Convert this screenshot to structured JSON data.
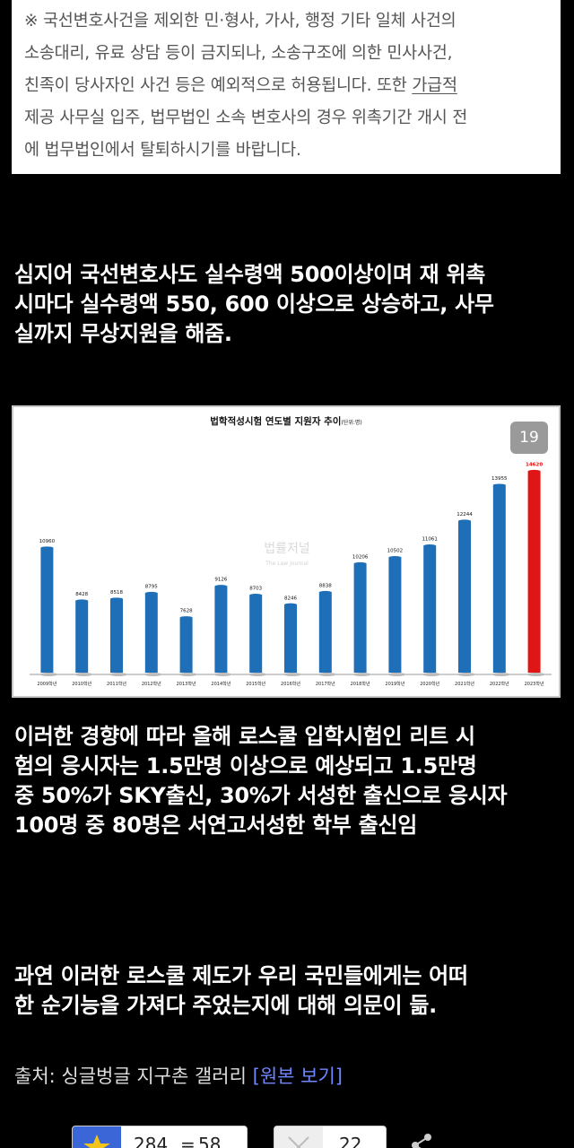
{
  "notice": {
    "lines": [
      "※ 국선변호사건을 제외한 민·형사, 가사, 행정 기타 일체 사건의",
      "소송대리, 유료 상담 등이 금지되나, 소송구조에 의한 민사사건,",
      "친족이 당사자인 사건 등은 예외적으로 허용됩니다. 또한 ",
      "가급적",
      "제공 사무실 입주, 법무법인 소속 변호사의 경우 위촉기간 개시 전",
      "에 법무법인에서 탈퇴하시기를 바랍니다."
    ]
  },
  "paragraph1": [
    "심지어 국선변호사도 실수령액 500이상이며 재 위촉",
    "시마다 실수령액 550, 600 이상으로 상승하고, 사무",
    "실까지 무상지원을 해줌."
  ],
  "page_badge": "19",
  "chart_data": {
    "type": "bar",
    "title": "법학적성시험 연도별 지원자 추이",
    "title_unit": "(단위:명)",
    "watermark": "법률저널",
    "watermark_en": "The Law Journal",
    "categories": [
      "2009학년",
      "2010학년",
      "2011학년",
      "2012학년",
      "2013학년",
      "2014학년",
      "2015학년",
      "2016학년",
      "2017학년",
      "2018학년",
      "2019학년",
      "2020학년",
      "2021학년",
      "2022학년",
      "2023학년"
    ],
    "values": [
      10960,
      8428,
      8518,
      8795,
      7628,
      9126,
      8703,
      8246,
      8838,
      10206,
      10502,
      11061,
      12244,
      13955,
      14620
    ],
    "ylim": [
      5000,
      15200
    ],
    "bar_color": "#1f6fb8",
    "highlight_color": "#e01515",
    "highlight_index": 14
  },
  "paragraph2": [
    "이러한 경향에 따라 올해 로스쿨 입학시험인 리트 시",
    "험의 응시자는 1.5만명 이상으로 예상되고 1.5만명",
    "중 50%가 SKY출신, 30%가 서성한 출신으로 응시자",
    "100명 중 80명은 서연고서성한 학부 출신임"
  ],
  "paragraph3": [
    "과연 이러한 로스쿨 제도가 우리 국민들에게는 어떠",
    "한 순기능을 가져다 주었는지에 대해 의문이 듦."
  ],
  "source": {
    "prefix": "출처: 싱글벙글 지구촌 갤러리 ",
    "link": "[원본 보기]"
  },
  "actions": {
    "upvotes": "284",
    "upvote_sep": "58",
    "downvotes": "22"
  }
}
